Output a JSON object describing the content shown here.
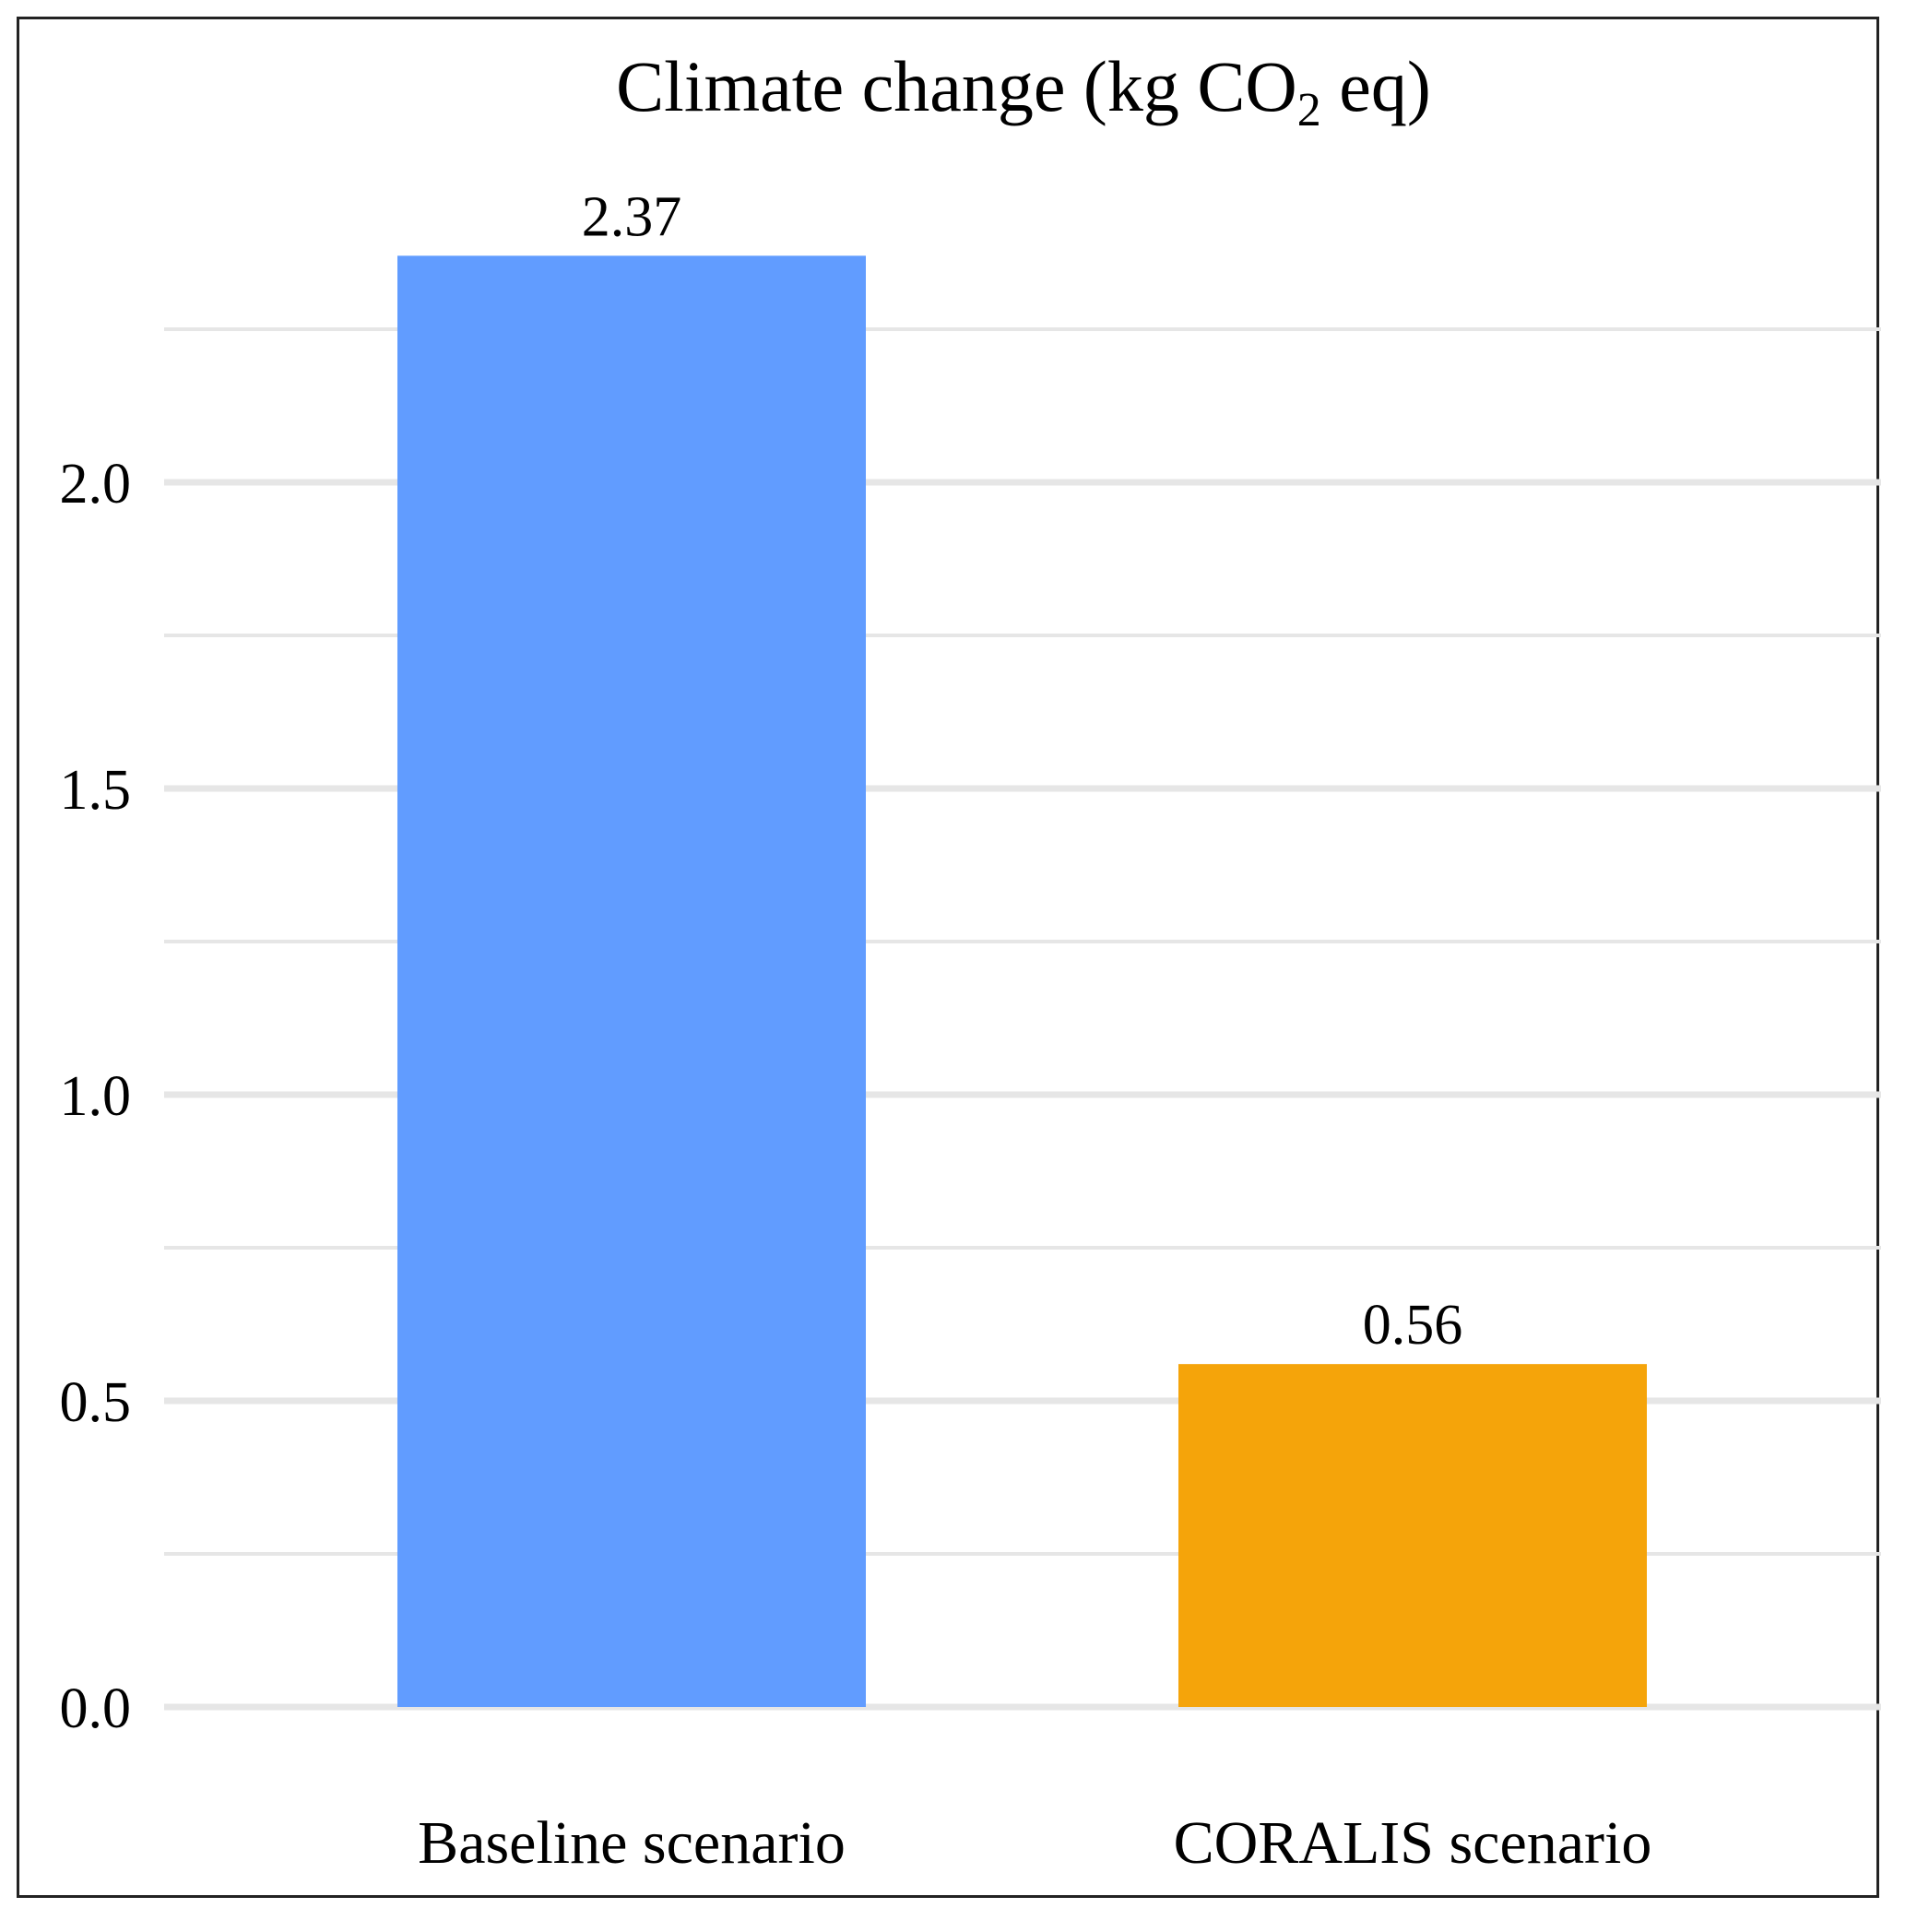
{
  "chart_data": {
    "type": "bar",
    "title": {
      "prefix": "Climate change (kg CO",
      "subscript": "2",
      "suffix": " eq)"
    },
    "categories": [
      "Baseline scenario",
      "CORALIS scenario"
    ],
    "values": [
      2.37,
      0.56
    ],
    "value_labels": [
      "2.37",
      "0.56"
    ],
    "bar_colors": [
      "#619cff",
      "#f5a40a"
    ],
    "ylim": [
      0,
      2.5
    ],
    "major_ticks": [
      0.0,
      0.5,
      1.0,
      1.5,
      2.0
    ],
    "major_tick_labels": [
      "0.0",
      "0.5",
      "1.0",
      "1.5",
      "2.0"
    ],
    "minor_gridlines": [
      0.25,
      0.75,
      1.25,
      1.75,
      2.25
    ],
    "grid": true,
    "legend": "none",
    "gridline_color": "#e6e6e6"
  }
}
